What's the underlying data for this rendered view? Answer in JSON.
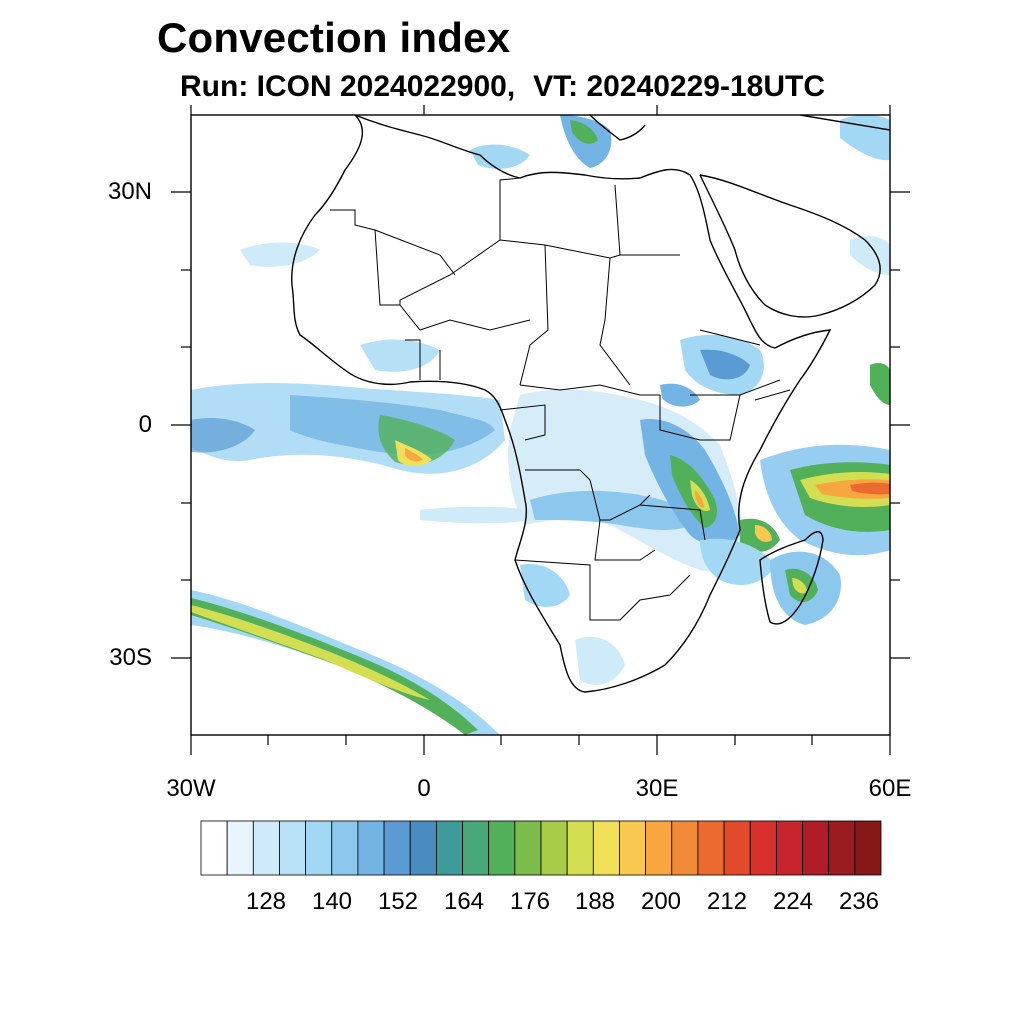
{
  "title": "Convection index",
  "subtitle": {
    "run": "Run: ICON 2024022900,",
    "vt": "VT: 20240229-18UTC"
  },
  "axes": {
    "lat_labels": [
      "30N",
      "0",
      "30S"
    ],
    "lon_labels": [
      "30W",
      "0",
      "30E",
      "60E"
    ]
  },
  "colorbar": {
    "labels": [
      "128",
      "140",
      "152",
      "164",
      "176",
      "188",
      "200",
      "212",
      "224",
      "236"
    ],
    "colors": [
      "#ffffff",
      "#e8f5fc",
      "#cfeaf8",
      "#b8e1f6",
      "#a3d8f4",
      "#8cc8ee",
      "#74b4e4",
      "#5b9bd4",
      "#4a8cc0",
      "#3f9a9a",
      "#49a878",
      "#52b05a",
      "#7cbc4c",
      "#a8cc48",
      "#d4de52",
      "#f0e05a",
      "#f8c850",
      "#f8a640",
      "#f08a38",
      "#ec6a30",
      "#e24a2c",
      "#d8302c",
      "#c8242c",
      "#b01c28",
      "#9a1c20",
      "#861818"
    ]
  },
  "icons": {
    "map": "africa-map-icon"
  }
}
